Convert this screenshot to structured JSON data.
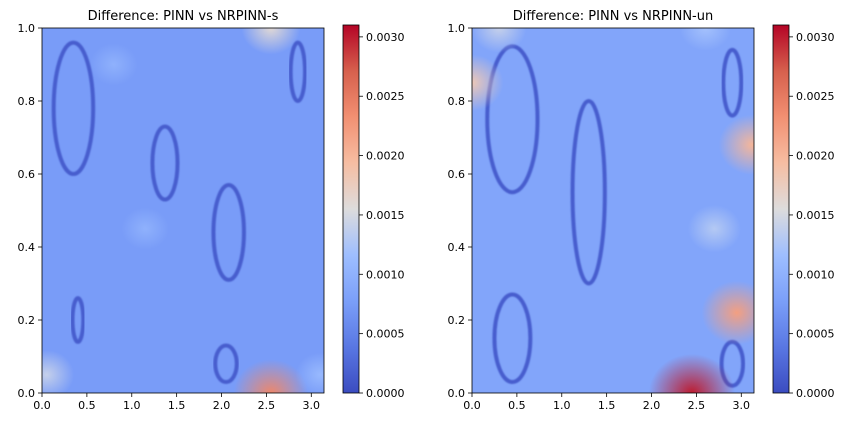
{
  "chart_data": [
    {
      "type": "heatmap",
      "title": "Difference: PINN vs NRPINN-s",
      "xlabel": "",
      "ylabel": "",
      "xlim": [
        0.0,
        3.1416
      ],
      "ylim": [
        0.0,
        1.0
      ],
      "xticks": [
        "0.0",
        "0.5",
        "1.0",
        "1.5",
        "2.0",
        "2.5",
        "3.0"
      ],
      "xtick_values": [
        0.0,
        0.5,
        1.0,
        1.5,
        2.0,
        2.5,
        3.0
      ],
      "yticks": [
        "0.0",
        "0.2",
        "0.4",
        "0.6",
        "0.8",
        "1.0"
      ],
      "ytick_values": [
        0.0,
        0.2,
        0.4,
        0.6,
        0.8,
        1.0
      ],
      "colormap": "coolwarm",
      "clim": [
        0.0,
        0.0031
      ],
      "colorbar_ticks": [
        "0.0000",
        "0.0005",
        "0.0010",
        "0.0015",
        "0.0020",
        "0.0025",
        "0.0030"
      ],
      "colorbar_tick_values": [
        0.0,
        0.0005,
        0.001,
        0.0015,
        0.002,
        0.0025,
        0.003
      ],
      "grid": false,
      "background_level": 0.00075,
      "hotspots": [
        {
          "x": 2.55,
          "y": 0.0,
          "value": 0.0024
        },
        {
          "x": 0.05,
          "y": 0.05,
          "value": 0.0014
        },
        {
          "x": 2.55,
          "y": 1.0,
          "value": 0.0016
        },
        {
          "x": 3.1,
          "y": 0.05,
          "value": 0.0011
        },
        {
          "x": 1.15,
          "y": 0.45,
          "value": 0.001
        },
        {
          "x": 0.8,
          "y": 0.9,
          "value": 0.001
        }
      ],
      "zero_contours": [
        {
          "cx": 1.37,
          "cy": 0.63,
          "rx": 0.14,
          "ry": 0.1
        },
        {
          "cx": 2.08,
          "cy": 0.44,
          "rx": 0.17,
          "ry": 0.13
        },
        {
          "cx": 2.85,
          "cy": 0.88,
          "rx": 0.08,
          "ry": 0.08
        },
        {
          "cx": 0.4,
          "cy": 0.2,
          "rx": 0.06,
          "ry": 0.06
        },
        {
          "cx": 2.05,
          "cy": 0.08,
          "rx": 0.12,
          "ry": 0.05
        },
        {
          "cx": 0.35,
          "cy": 0.78,
          "rx": 0.22,
          "ry": 0.18
        }
      ]
    },
    {
      "type": "heatmap",
      "title": "Difference: PINN vs NRPINN-un",
      "xlabel": "",
      "ylabel": "",
      "xlim": [
        0.0,
        3.1416
      ],
      "ylim": [
        0.0,
        1.0
      ],
      "xticks": [
        "0.0",
        "0.5",
        "1.0",
        "1.5",
        "2.0",
        "2.5",
        "3.0"
      ],
      "xtick_values": [
        0.0,
        0.5,
        1.0,
        1.5,
        2.0,
        2.5,
        3.0
      ],
      "yticks": [
        "0.0",
        "0.2",
        "0.4",
        "0.6",
        "0.8",
        "1.0"
      ],
      "ytick_values": [
        0.0,
        0.2,
        0.4,
        0.6,
        0.8,
        1.0
      ],
      "colormap": "coolwarm",
      "clim": [
        0.0,
        0.0031
      ],
      "colorbar_ticks": [
        "0.0000",
        "0.0005",
        "0.0010",
        "0.0015",
        "0.0020",
        "0.0025",
        "0.0030"
      ],
      "colorbar_tick_values": [
        0.0,
        0.0005,
        0.001,
        0.0015,
        0.002,
        0.0025,
        0.003
      ],
      "grid": false,
      "background_level": 0.00085,
      "hotspots": [
        {
          "x": 2.45,
          "y": 0.0,
          "value": 0.003
        },
        {
          "x": 2.95,
          "y": 0.22,
          "value": 0.0022
        },
        {
          "x": 3.12,
          "y": 0.68,
          "value": 0.002
        },
        {
          "x": 0.0,
          "y": 0.85,
          "value": 0.0018
        },
        {
          "x": 2.7,
          "y": 0.45,
          "value": 0.0013
        },
        {
          "x": 0.3,
          "y": 1.0,
          "value": 0.0014
        },
        {
          "x": 2.6,
          "y": 1.0,
          "value": 0.0012
        }
      ],
      "zero_contours": [
        {
          "cx": 0.45,
          "cy": 0.15,
          "rx": 0.2,
          "ry": 0.12
        },
        {
          "cx": 0.45,
          "cy": 0.75,
          "rx": 0.28,
          "ry": 0.2
        },
        {
          "cx": 1.3,
          "cy": 0.55,
          "rx": 0.18,
          "ry": 0.25
        },
        {
          "cx": 2.9,
          "cy": 0.85,
          "rx": 0.1,
          "ry": 0.09
        },
        {
          "cx": 2.9,
          "cy": 0.08,
          "rx": 0.12,
          "ry": 0.06
        }
      ]
    }
  ]
}
